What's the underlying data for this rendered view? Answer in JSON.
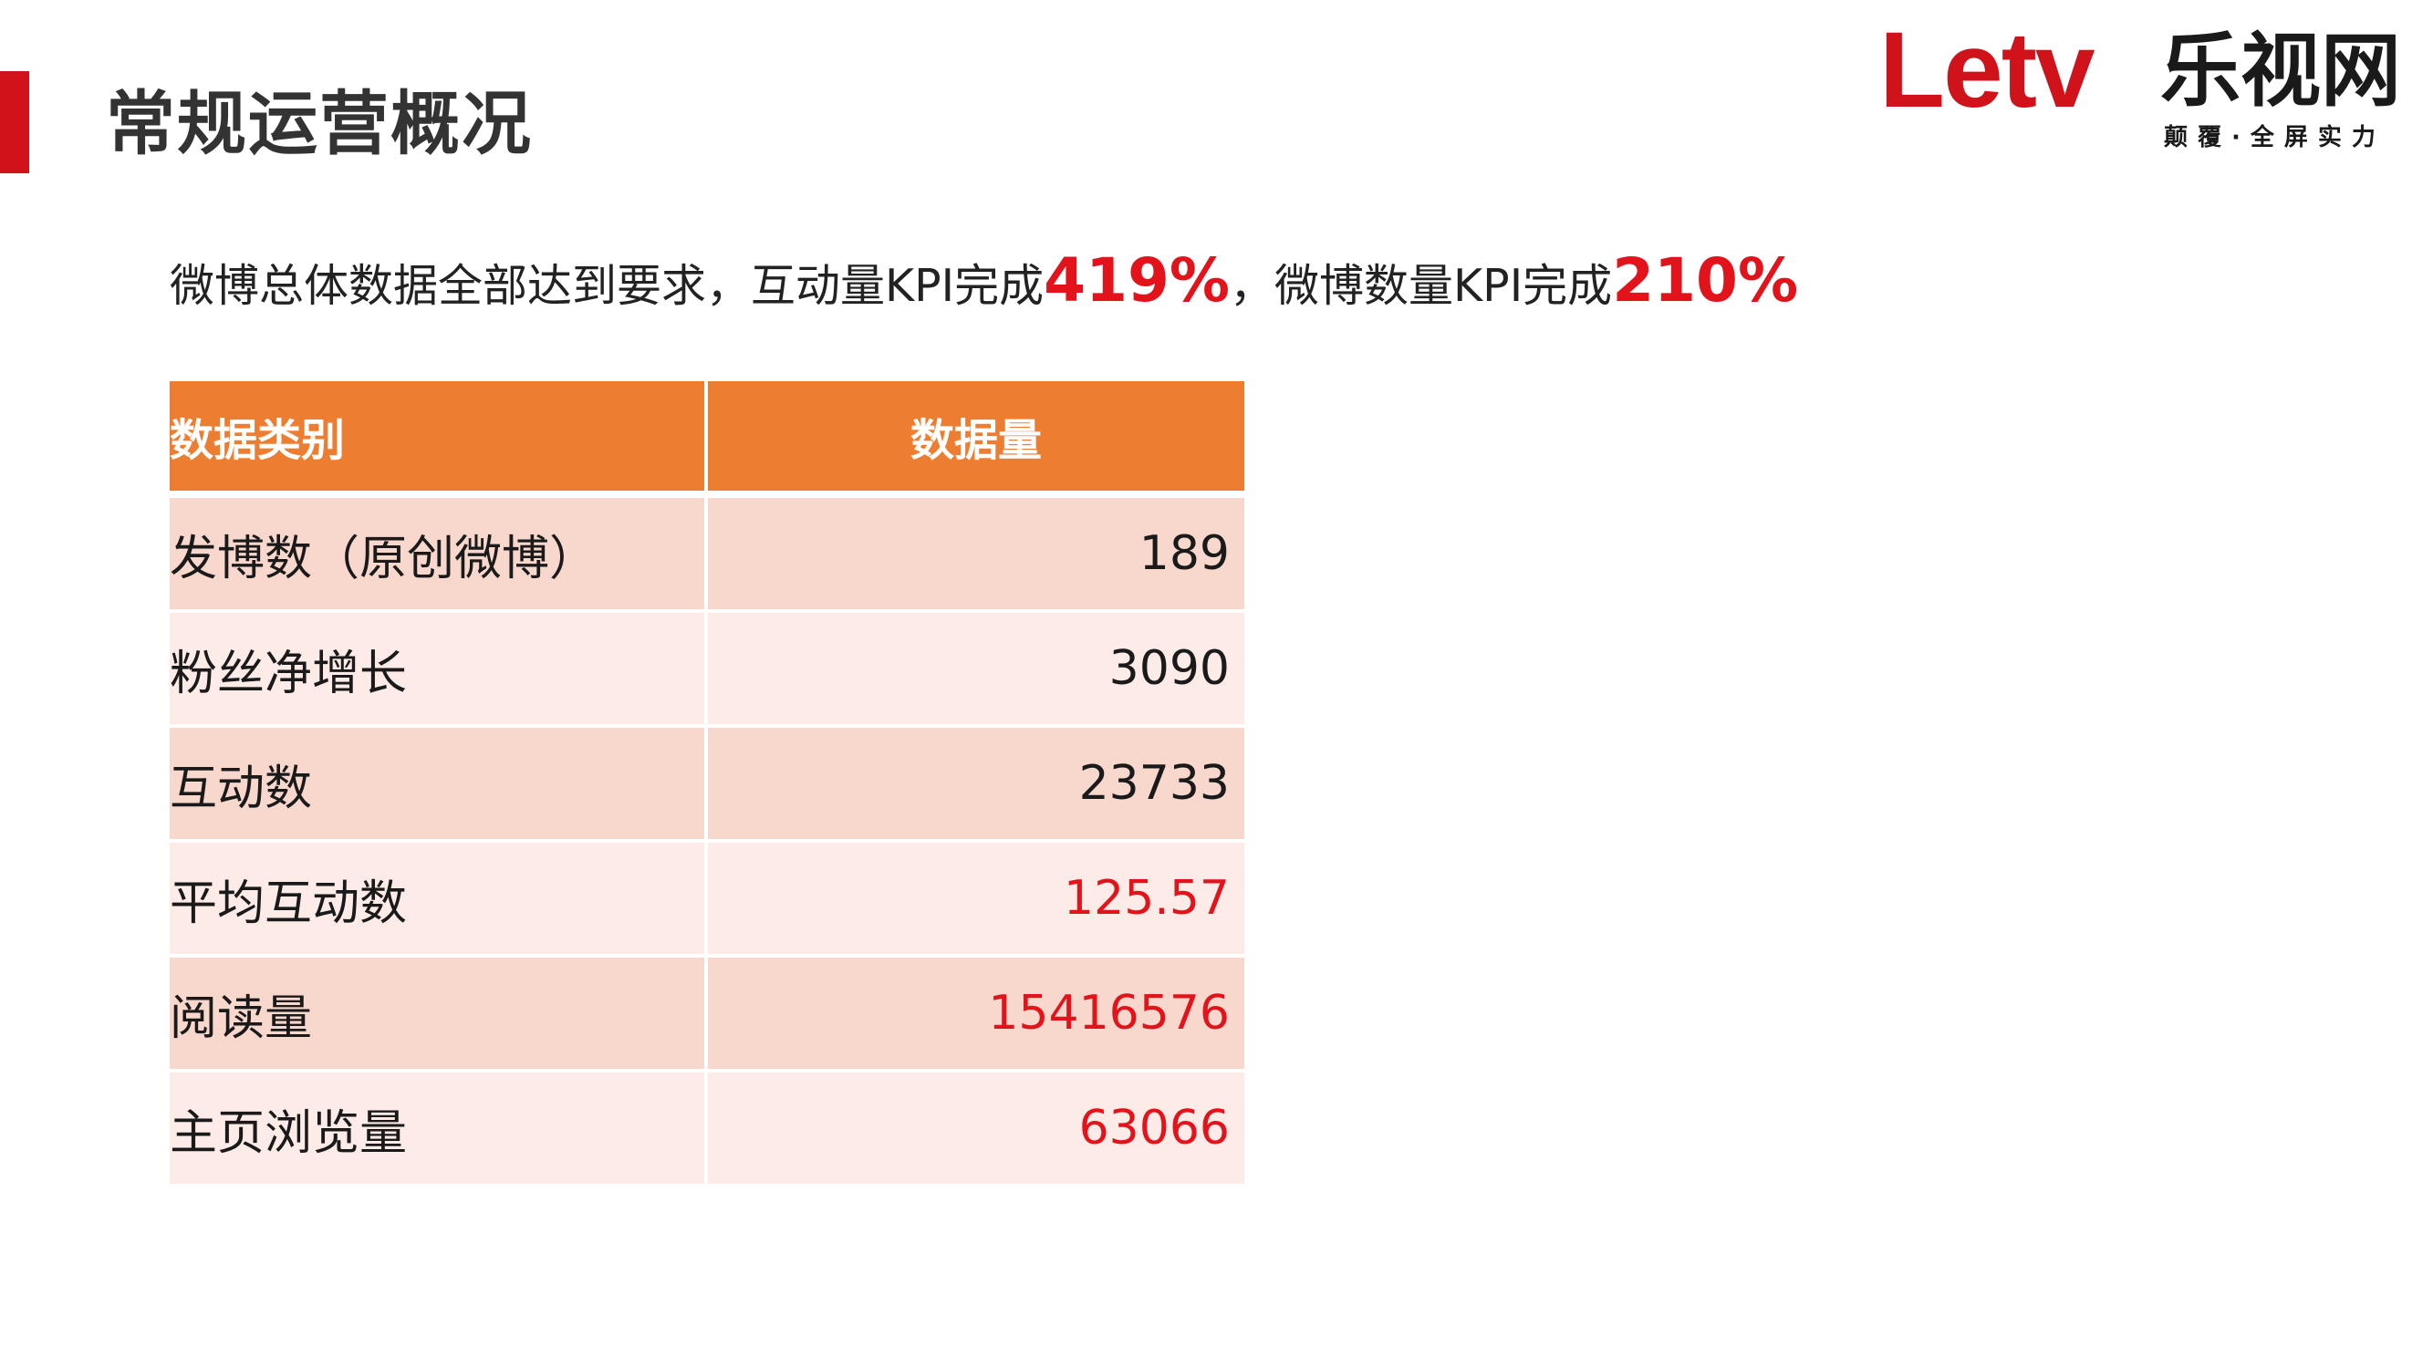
{
  "page": {
    "title": "常规运营概况",
    "accent_color": "#d0121b"
  },
  "logo": {
    "brand": "Letv",
    "brand_cn": "乐视网",
    "slogan": "颠覆·全屏实力"
  },
  "headline": {
    "part1": "微博总体数据全部达到要求，互动量KPI完成",
    "kpi1": "419%",
    "part2": "，微博数量KPI完成",
    "kpi2": "210%",
    "highlight_color": "#e3131b"
  },
  "table": {
    "header_color": "#ed7d31",
    "headers": [
      "数据类别",
      "数据量"
    ],
    "rows": [
      {
        "label": "发博数（原创微博）",
        "value": "189",
        "highlight": false
      },
      {
        "label": "粉丝净增长",
        "value": "3090",
        "highlight": false
      },
      {
        "label": "互动数",
        "value": "23733",
        "highlight": false
      },
      {
        "label": "平均互动数",
        "value": "125.57",
        "highlight": true
      },
      {
        "label": "阅读量",
        "value": "15416576",
        "highlight": true
      },
      {
        "label": "主页浏览量",
        "value": "63066",
        "highlight": true
      }
    ]
  }
}
